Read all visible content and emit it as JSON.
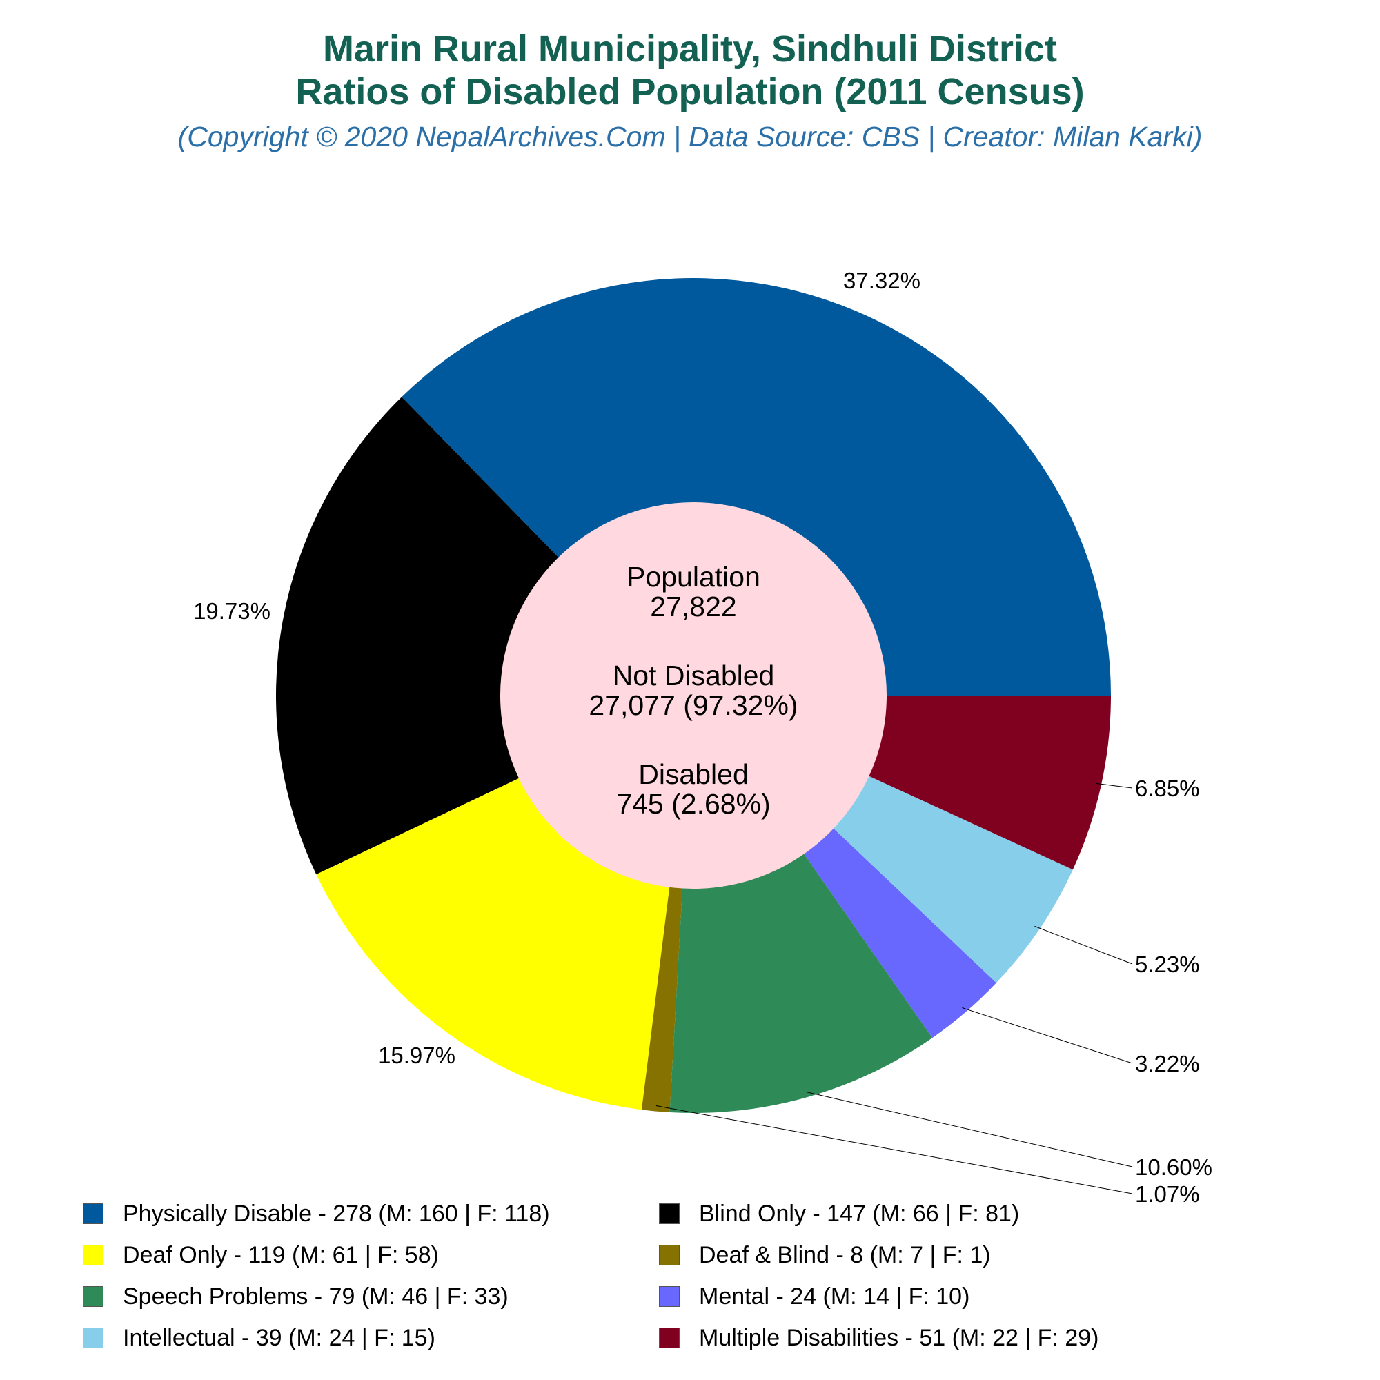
{
  "header": {
    "title_line1": "Marin Rural Municipality, Sindhuli District",
    "title_line2": "Ratios of Disabled Population (2011 Census)",
    "subtitle": "(Copyright © 2020 NepalArchives.Com | Data Source: CBS | Creator: Milan Karki)"
  },
  "center": {
    "population_label": "Population",
    "population_value": "27,822",
    "not_disabled_label": "Not Disabled",
    "not_disabled_value": "27,077 (97.32%)",
    "disabled_label": "Disabled",
    "disabled_value": "745 (2.68%)"
  },
  "chart_data": {
    "type": "pie",
    "style": "donut",
    "start_angle_deg": 0,
    "direction": "counterclockwise",
    "legend_position": "bottom",
    "categories": [
      "Physically Disable",
      "Blind Only",
      "Deaf Only",
      "Deaf & Blind",
      "Speech Problems",
      "Mental",
      "Intellectual",
      "Multiple Disabilities"
    ],
    "values": [
      278,
      147,
      119,
      8,
      79,
      24,
      39,
      51
    ],
    "percent_labels": [
      "37.32%",
      "19.73%",
      "15.97%",
      "1.07%",
      "10.60%",
      "3.22%",
      "5.23%",
      "6.85%"
    ],
    "colors": [
      "#00599c",
      "#000000",
      "#ffff00",
      "#857200",
      "#2e8b57",
      "#6868ff",
      "#87ceeb",
      "#800020"
    ],
    "center_color": "#ffd9df",
    "legend": [
      "Physically Disable - 278 (M: 160 | F: 118)",
      "Blind Only - 147 (M: 66 | F: 81)",
      "Deaf Only - 119 (M: 61 | F: 58)",
      "Deaf & Blind - 8 (M: 7 | F: 1)",
      "Speech Problems - 79 (M: 46 | F: 33)",
      "Mental - 24 (M: 14 | F: 10)",
      "Intellectual - 39 (M: 24 | F: 15)",
      "Multiple Disabilities - 51 (M: 22 | F: 29)"
    ]
  }
}
